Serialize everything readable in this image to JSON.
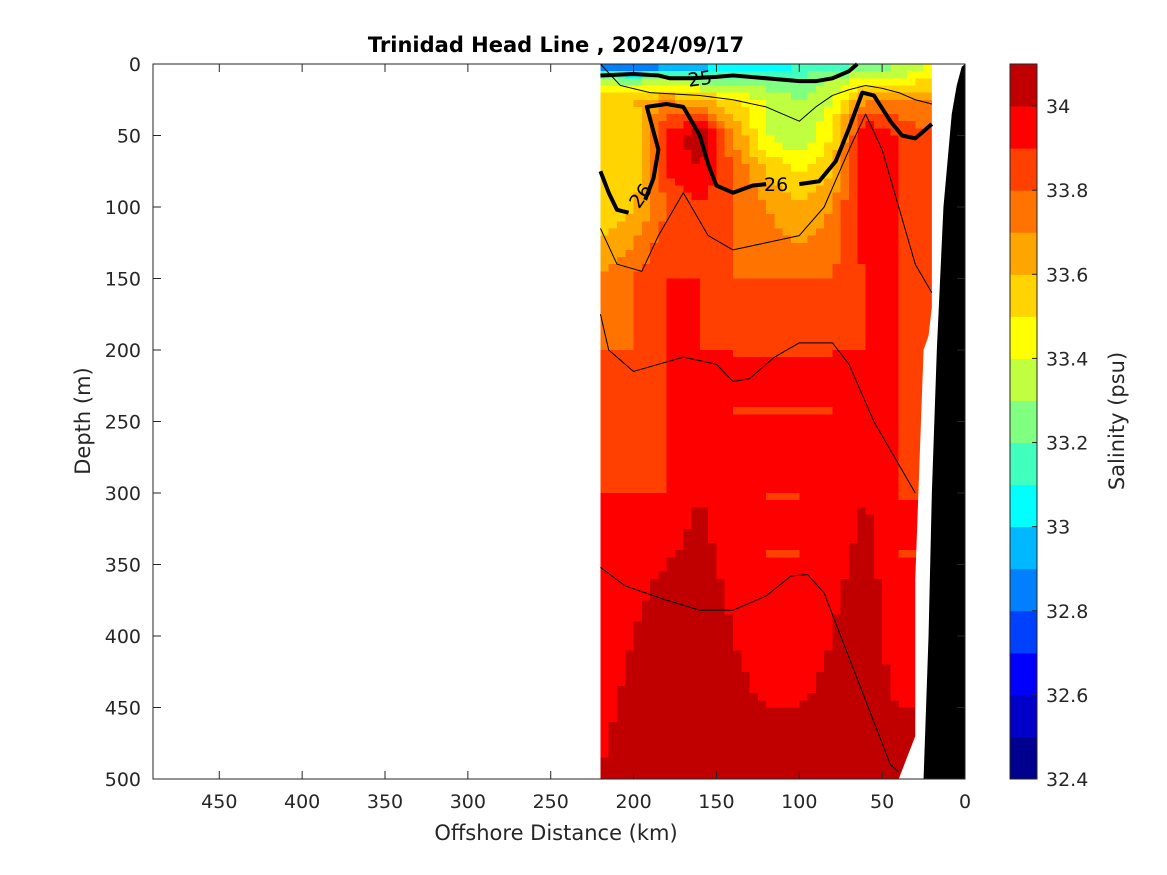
{
  "chart_data": {
    "type": "heatmap",
    "title": "Trinidad Head Line , 2024/09/17",
    "xlabel": "Offshore Distance (km)",
    "ylabel": "Depth (m)",
    "xlim": [
      490,
      0
    ],
    "ylim": [
      0,
      500
    ],
    "x_reversed": true,
    "y_reversed": true,
    "xticks": [
      450,
      400,
      350,
      300,
      250,
      200,
      150,
      100,
      50,
      0
    ],
    "yticks": [
      0,
      50,
      100,
      150,
      200,
      250,
      300,
      350,
      400,
      450,
      500
    ],
    "colorbar": {
      "label": "Salinity (psu)",
      "range": [
        32.4,
        34.1
      ],
      "ticks": [
        32.4,
        32.6,
        32.8,
        33,
        33.2,
        33.4,
        33.6,
        33.8,
        34
      ],
      "tick_labels": [
        "32.4",
        "32.6",
        "32.8",
        "33",
        "33.2",
        "33.4",
        "33.6",
        "33.8",
        "34"
      ],
      "levels": [
        32.4,
        32.5,
        32.6,
        32.7,
        32.8,
        32.9,
        33.0,
        33.1,
        33.2,
        33.3,
        33.4,
        33.5,
        33.6,
        33.7,
        33.8,
        33.9,
        34.0,
        34.1
      ],
      "colors": [
        "#00008f",
        "#0000c8",
        "#0000ff",
        "#0040ff",
        "#0080ff",
        "#00b8ff",
        "#00ffff",
        "#40ffbf",
        "#80ff80",
        "#bfff40",
        "#ffff00",
        "#ffd400",
        "#ffa500",
        "#ff7300",
        "#ff4000",
        "#ff0000",
        "#c00000"
      ]
    },
    "data_extent_x": [
      0,
      220
    ],
    "section_data": {
      "x_km": [
        220,
        200,
        180,
        160,
        140,
        120,
        100,
        80,
        60,
        40,
        20
      ],
      "depth_m": [
        0,
        10,
        25,
        50,
        75,
        100,
        150,
        200,
        300,
        400,
        500
      ],
      "salinity": [
        [
          32.7,
          32.7,
          32.8,
          32.9,
          33.0,
          33.0,
          33.1,
          33.1,
          33.2,
          33.3,
          33.4
        ],
        [
          33.3,
          33.2,
          33.3,
          33.2,
          33.2,
          33.2,
          33.2,
          33.3,
          33.4,
          33.4,
          33.5
        ],
        [
          33.6,
          33.6,
          33.7,
          33.6,
          33.5,
          33.4,
          33.3,
          33.4,
          33.7,
          33.7,
          33.7
        ],
        [
          33.6,
          33.5,
          33.9,
          34.1,
          33.7,
          33.4,
          33.3,
          33.5,
          34.0,
          33.9,
          33.8
        ],
        [
          33.5,
          33.5,
          33.9,
          34.0,
          33.8,
          33.6,
          33.5,
          33.6,
          34.0,
          33.9,
          33.8
        ],
        [
          33.5,
          33.6,
          33.8,
          33.9,
          33.8,
          33.7,
          33.6,
          33.7,
          34.0,
          33.9,
          33.8
        ],
        [
          33.7,
          33.8,
          33.9,
          33.9,
          33.8,
          33.8,
          33.8,
          33.8,
          33.9,
          33.9,
          33.8
        ],
        [
          33.8,
          33.8,
          33.9,
          33.9,
          33.9,
          33.9,
          33.9,
          33.9,
          33.9,
          33.9,
          33.8
        ],
        [
          33.9,
          33.9,
          33.9,
          34.0,
          33.9,
          33.9,
          33.9,
          33.9,
          34.0,
          33.9,
          33.9
        ],
        [
          33.9,
          34.0,
          34.1,
          34.1,
          34.0,
          33.9,
          33.9,
          34.0,
          34.1,
          33.9,
          33.9
        ],
        [
          34.0,
          34.1,
          34.1,
          34.1,
          34.1,
          34.1,
          34.1,
          34.1,
          34.1,
          34.1,
          34.1
        ]
      ]
    },
    "density_contours": [
      {
        "label": "25",
        "bold": true,
        "points": [
          [
            220,
            8
          ],
          [
            200,
            7
          ],
          [
            185,
            8
          ],
          [
            178,
            10
          ],
          [
            165,
            10
          ],
          [
            150,
            9
          ],
          [
            140,
            8
          ],
          [
            120,
            10
          ],
          [
            100,
            12
          ],
          [
            90,
            12
          ],
          [
            80,
            10
          ],
          [
            70,
            5
          ],
          [
            65,
            0
          ]
        ]
      },
      {
        "label": "26",
        "bold": true,
        "points": [
          [
            220,
            75
          ],
          [
            215,
            90
          ],
          [
            210,
            102
          ],
          [
            203,
            104
          ]
        ]
      },
      {
        "label": "26",
        "bold": true,
        "points": [
          [
            193,
            95
          ],
          [
            188,
            80
          ],
          [
            185,
            60
          ],
          [
            192,
            30
          ],
          [
            180,
            28
          ],
          [
            170,
            30
          ],
          [
            160,
            50
          ],
          [
            155,
            70
          ],
          [
            150,
            85
          ],
          [
            140,
            90
          ],
          [
            128,
            85
          ],
          [
            120,
            84
          ]
        ]
      },
      {
        "label": "26",
        "bold": true,
        "points": [
          [
            100,
            84
          ],
          [
            88,
            82
          ],
          [
            78,
            68
          ],
          [
            70,
            45
          ],
          [
            62,
            20
          ],
          [
            55,
            22
          ],
          [
            45,
            40
          ],
          [
            38,
            50
          ],
          [
            30,
            52
          ],
          [
            20,
            42
          ]
        ]
      },
      {
        "label": "",
        "bold": false,
        "points": [
          [
            220,
            0
          ],
          [
            208,
            15
          ],
          [
            190,
            20
          ],
          [
            160,
            22
          ],
          [
            140,
            25
          ],
          [
            120,
            30
          ],
          [
            110,
            35
          ],
          [
            100,
            40
          ],
          [
            90,
            30
          ],
          [
            80,
            22
          ],
          [
            70,
            18
          ],
          [
            60,
            15
          ],
          [
            50,
            17
          ],
          [
            40,
            20
          ],
          [
            30,
            25
          ],
          [
            20,
            28
          ]
        ]
      },
      {
        "label": "",
        "bold": false,
        "points": [
          [
            220,
            115
          ],
          [
            210,
            140
          ],
          [
            195,
            145
          ],
          [
            185,
            120
          ],
          [
            170,
            90
          ],
          [
            155,
            120
          ],
          [
            140,
            130
          ],
          [
            120,
            125
          ],
          [
            100,
            120
          ],
          [
            85,
            100
          ],
          [
            70,
            60
          ],
          [
            60,
            35
          ],
          [
            50,
            60
          ],
          [
            40,
            100
          ],
          [
            30,
            140
          ],
          [
            20,
            160
          ]
        ]
      },
      {
        "label": "",
        "bold": false,
        "points": [
          [
            220,
            175
          ],
          [
            215,
            200
          ],
          [
            200,
            215
          ],
          [
            185,
            210
          ],
          [
            170,
            205
          ],
          [
            150,
            210
          ],
          [
            140,
            222
          ],
          [
            130,
            220
          ],
          [
            115,
            205
          ],
          [
            100,
            195
          ],
          [
            80,
            195
          ],
          [
            70,
            210
          ],
          [
            55,
            250
          ],
          [
            45,
            270
          ],
          [
            30,
            300
          ]
        ]
      },
      {
        "label": "",
        "bold": false,
        "points": [
          [
            220,
            352
          ],
          [
            205,
            365
          ],
          [
            180,
            375
          ],
          [
            160,
            382
          ],
          [
            140,
            382
          ],
          [
            120,
            372
          ],
          [
            105,
            358
          ],
          [
            95,
            357
          ],
          [
            85,
            370
          ],
          [
            75,
            400
          ],
          [
            65,
            430
          ],
          [
            55,
            460
          ],
          [
            45,
            490
          ],
          [
            40,
            495
          ]
        ]
      }
    ],
    "bathymetry_km_m": [
      [
        25,
        500
      ],
      [
        22,
        400
      ],
      [
        20,
        300
      ],
      [
        17,
        200
      ],
      [
        13,
        100
      ],
      [
        8,
        35
      ],
      [
        5,
        15
      ],
      [
        2,
        2
      ],
      [
        0,
        0
      ],
      [
        0,
        500
      ]
    ]
  }
}
